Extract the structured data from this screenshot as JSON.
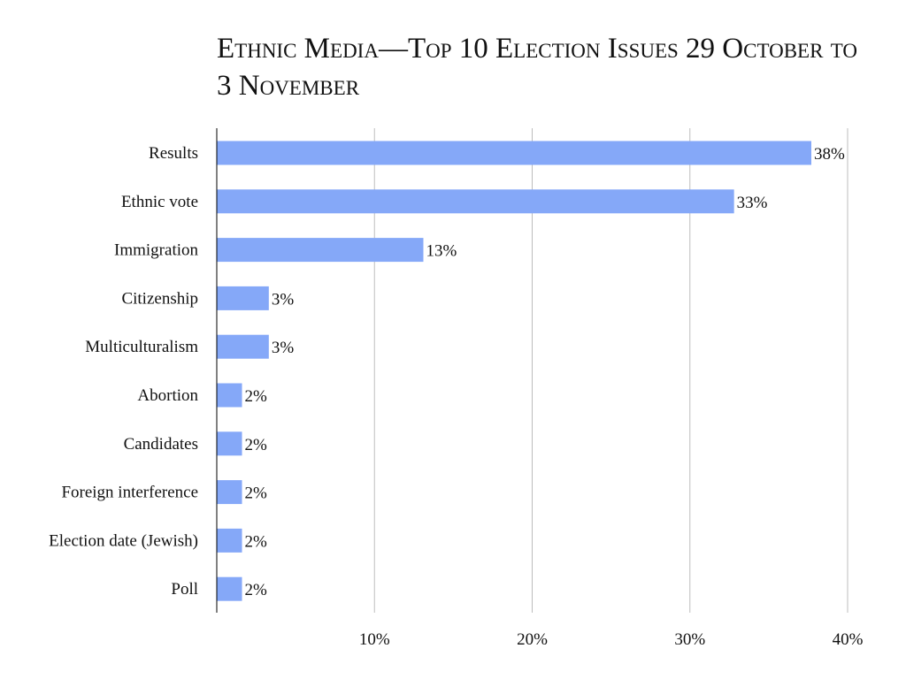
{
  "chart_data": {
    "type": "bar",
    "orientation": "horizontal",
    "title": "Ethnic Media—Top 10 Election Issues 29 October to 3 November",
    "categories": [
      "Results",
      "Ethnic vote",
      "Immigration",
      "Citizenship",
      "Multiculturalism",
      "Abortion",
      "Candidates",
      "Foreign interference",
      "Election date (Jewish)",
      "Poll"
    ],
    "values": [
      37.7,
      32.8,
      13.1,
      3.3,
      3.3,
      1.6,
      1.6,
      1.6,
      1.6,
      1.6
    ],
    "data_labels": [
      "38%",
      "33%",
      "13%",
      "3%",
      "3%",
      "2%",
      "2%",
      "2%",
      "2%",
      "2%"
    ],
    "xlim": [
      0,
      40
    ],
    "xticks": [
      10,
      20,
      30,
      40
    ],
    "xtick_labels": [
      "10%",
      "20%",
      "30%",
      "40%"
    ],
    "xlabel": "",
    "ylabel": "",
    "grid": "vertical",
    "legend": "none",
    "bar_color": "#85a8f8"
  }
}
